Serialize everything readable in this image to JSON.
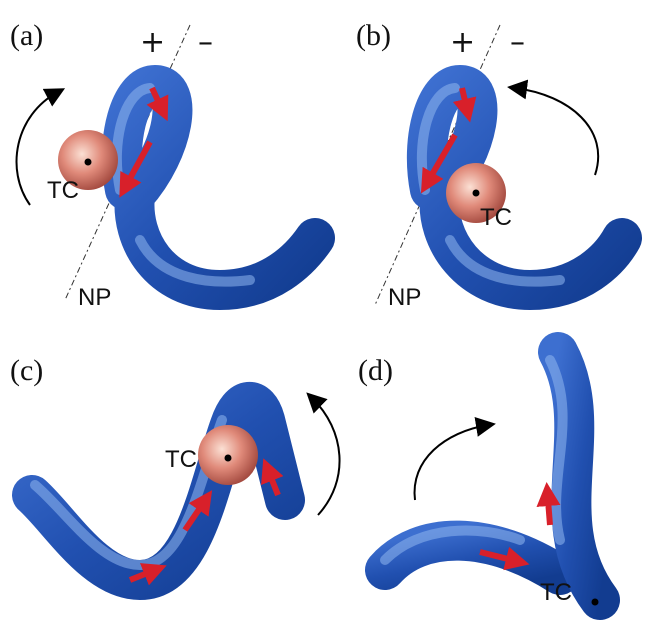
{
  "panels": [
    {
      "label": "(a)",
      "plus": "+",
      "minus": "–",
      "tc": "TC",
      "np": "NP"
    },
    {
      "label": "(b)",
      "plus": "+",
      "minus": "–",
      "tc": "TC",
      "np": "NP"
    },
    {
      "label": "(c)",
      "tc": "TC"
    },
    {
      "label": "(d)",
      "tc": "TC"
    }
  ]
}
